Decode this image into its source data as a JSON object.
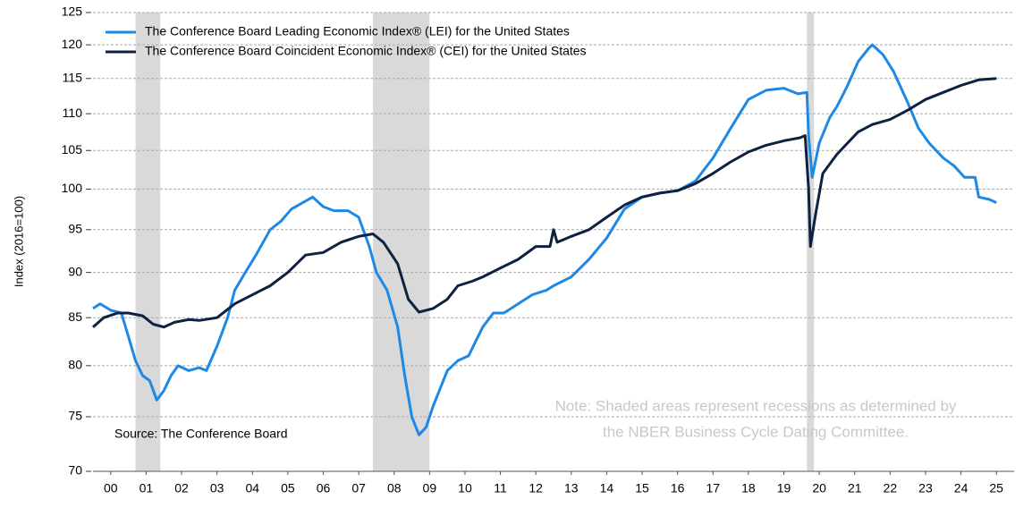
{
  "chart_data": {
    "type": "line",
    "y_label": "Index (2016=100)",
    "source": "Source: The Conference Board",
    "note": [
      "Note: Shaded areas represent recessions as determined by",
      "the NBER Business Cycle Dating Committee."
    ],
    "yscale": "log",
    "grid": true,
    "legend": "top-left",
    "ylim": [
      70,
      125
    ],
    "yticks": [
      70,
      75,
      80,
      85,
      90,
      95,
      100,
      105,
      110,
      115,
      120,
      125
    ],
    "xlim": [
      2000,
      2026
    ],
    "xticks": [
      {
        "value": 2000.5,
        "label": "00"
      },
      {
        "value": 2001.5,
        "label": "01"
      },
      {
        "value": 2002.5,
        "label": "02"
      },
      {
        "value": 2003.5,
        "label": "03"
      },
      {
        "value": 2004.5,
        "label": "04"
      },
      {
        "value": 2005.5,
        "label": "05"
      },
      {
        "value": 2006.5,
        "label": "06"
      },
      {
        "value": 2007.5,
        "label": "07"
      },
      {
        "value": 2008.5,
        "label": "08"
      },
      {
        "value": 2009.5,
        "label": "09"
      },
      {
        "value": 2010.5,
        "label": "10"
      },
      {
        "value": 2011.5,
        "label": "11"
      },
      {
        "value": 2012.5,
        "label": "12"
      },
      {
        "value": 2013.5,
        "label": "13"
      },
      {
        "value": 2014.5,
        "label": "14"
      },
      {
        "value": 2015.5,
        "label": "15"
      },
      {
        "value": 2016.5,
        "label": "16"
      },
      {
        "value": 2017.5,
        "label": "17"
      },
      {
        "value": 2018.5,
        "label": "18"
      },
      {
        "value": 2019.5,
        "label": "19"
      },
      {
        "value": 2020.5,
        "label": "20"
      },
      {
        "value": 2021.5,
        "label": "21"
      },
      {
        "value": 2022.5,
        "label": "22"
      },
      {
        "value": 2023.5,
        "label": "23"
      },
      {
        "value": 2024.5,
        "label": "24"
      },
      {
        "value": 2025.5,
        "label": "25"
      }
    ],
    "recessions": [
      [
        2001.2,
        2001.9
      ],
      [
        2007.9,
        2009.5
      ],
      [
        2020.15,
        2020.35
      ]
    ],
    "recession_color": "#d9d9d9",
    "series": [
      {
        "name": "The Conference Board Leading Economic Index® (LEI) for the United States",
        "color": "#1e88e5",
        "x": [
          2000.0,
          2000.2,
          2000.5,
          2000.8,
          2001.0,
          2001.2,
          2001.4,
          2001.6,
          2001.8,
          2002.0,
          2002.2,
          2002.4,
          2002.7,
          2003.0,
          2003.2,
          2003.5,
          2003.8,
          2004.0,
          2004.3,
          2004.6,
          2005.0,
          2005.3,
          2005.6,
          2006.0,
          2006.2,
          2006.5,
          2006.8,
          2007.2,
          2007.5,
          2007.8,
          2008.0,
          2008.3,
          2008.6,
          2008.8,
          2009.0,
          2009.2,
          2009.4,
          2009.6,
          2010.0,
          2010.3,
          2010.6,
          2011.0,
          2011.3,
          2011.6,
          2012.0,
          2012.4,
          2012.8,
          2013.0,
          2013.5,
          2014.0,
          2014.5,
          2015.0,
          2015.5,
          2016.0,
          2016.5,
          2017.0,
          2017.5,
          2018.0,
          2018.5,
          2019.0,
          2019.5,
          2019.9,
          2020.15,
          2020.2,
          2020.3,
          2020.5,
          2020.8,
          2021.0,
          2021.3,
          2021.6,
          2021.9,
          2022.0,
          2022.3,
          2022.6,
          2023.0,
          2023.3,
          2023.6,
          2024.0,
          2024.3,
          2024.6,
          2024.9,
          2025.0,
          2025.3,
          2025.5
        ],
        "values": [
          86,
          86.5,
          85.8,
          85.5,
          83,
          80.5,
          79,
          78.5,
          76.6,
          77.5,
          79,
          80,
          79.5,
          79.8,
          79.5,
          82,
          85,
          88,
          90,
          92,
          95,
          96,
          97.5,
          98.5,
          99,
          97.8,
          97.3,
          97.3,
          96.5,
          93,
          90,
          88,
          84,
          79,
          75,
          73.3,
          74,
          76,
          79.5,
          80.5,
          81,
          84,
          85.5,
          85.5,
          86.5,
          87.5,
          88,
          88.5,
          89.5,
          91.5,
          94,
          97.5,
          99,
          99.5,
          99.8,
          101,
          104,
          108,
          112,
          113.3,
          113.6,
          112.8,
          113,
          107,
          101.5,
          106,
          109.5,
          111,
          114,
          117.5,
          119.5,
          120,
          118.5,
          116,
          111.5,
          108,
          106,
          104,
          103,
          101.5,
          101.5,
          99,
          98.7,
          98.3
        ]
      },
      {
        "name": "The Conference Board Coincident Economic Index® (CEI) for the United States",
        "color": "#0d2240",
        "x": [
          2000.0,
          2000.3,
          2000.7,
          2001.0,
          2001.4,
          2001.7,
          2002.0,
          2002.3,
          2002.7,
          2003.0,
          2003.5,
          2004.0,
          2004.5,
          2005.0,
          2005.5,
          2006.0,
          2006.5,
          2007.0,
          2007.5,
          2007.9,
          2008.2,
          2008.6,
          2008.9,
          2009.2,
          2009.6,
          2010.0,
          2010.3,
          2010.7,
          2011.0,
          2011.5,
          2012.0,
          2012.5,
          2012.9,
          2013.0,
          2013.1,
          2013.5,
          2014.0,
          2014.5,
          2015.0,
          2015.5,
          2016.0,
          2016.5,
          2017.0,
          2017.5,
          2018.0,
          2018.5,
          2019.0,
          2019.5,
          2019.95,
          2020.1,
          2020.2,
          2020.25,
          2020.4,
          2020.6,
          2021.0,
          2021.3,
          2021.6,
          2022.0,
          2022.5,
          2023.0,
          2023.5,
          2024.0,
          2024.5,
          2025.0,
          2025.5
        ],
        "values": [
          84,
          85,
          85.5,
          85.5,
          85.2,
          84.3,
          84,
          84.5,
          84.8,
          84.7,
          85,
          86.5,
          87.5,
          88.5,
          90,
          92,
          92.3,
          93.5,
          94.2,
          94.5,
          93.5,
          91,
          87,
          85.6,
          86,
          87,
          88.5,
          89,
          89.5,
          90.5,
          91.5,
          93,
          93,
          95,
          93.5,
          94.2,
          95,
          96.5,
          98,
          99,
          99.5,
          99.8,
          100.7,
          102,
          103.5,
          104.8,
          105.7,
          106.3,
          106.7,
          107,
          100,
          93,
          97,
          102,
          104.5,
          106,
          107.5,
          108.5,
          109.2,
          110.5,
          112,
          113,
          114,
          114.8,
          115
        ]
      }
    ]
  }
}
